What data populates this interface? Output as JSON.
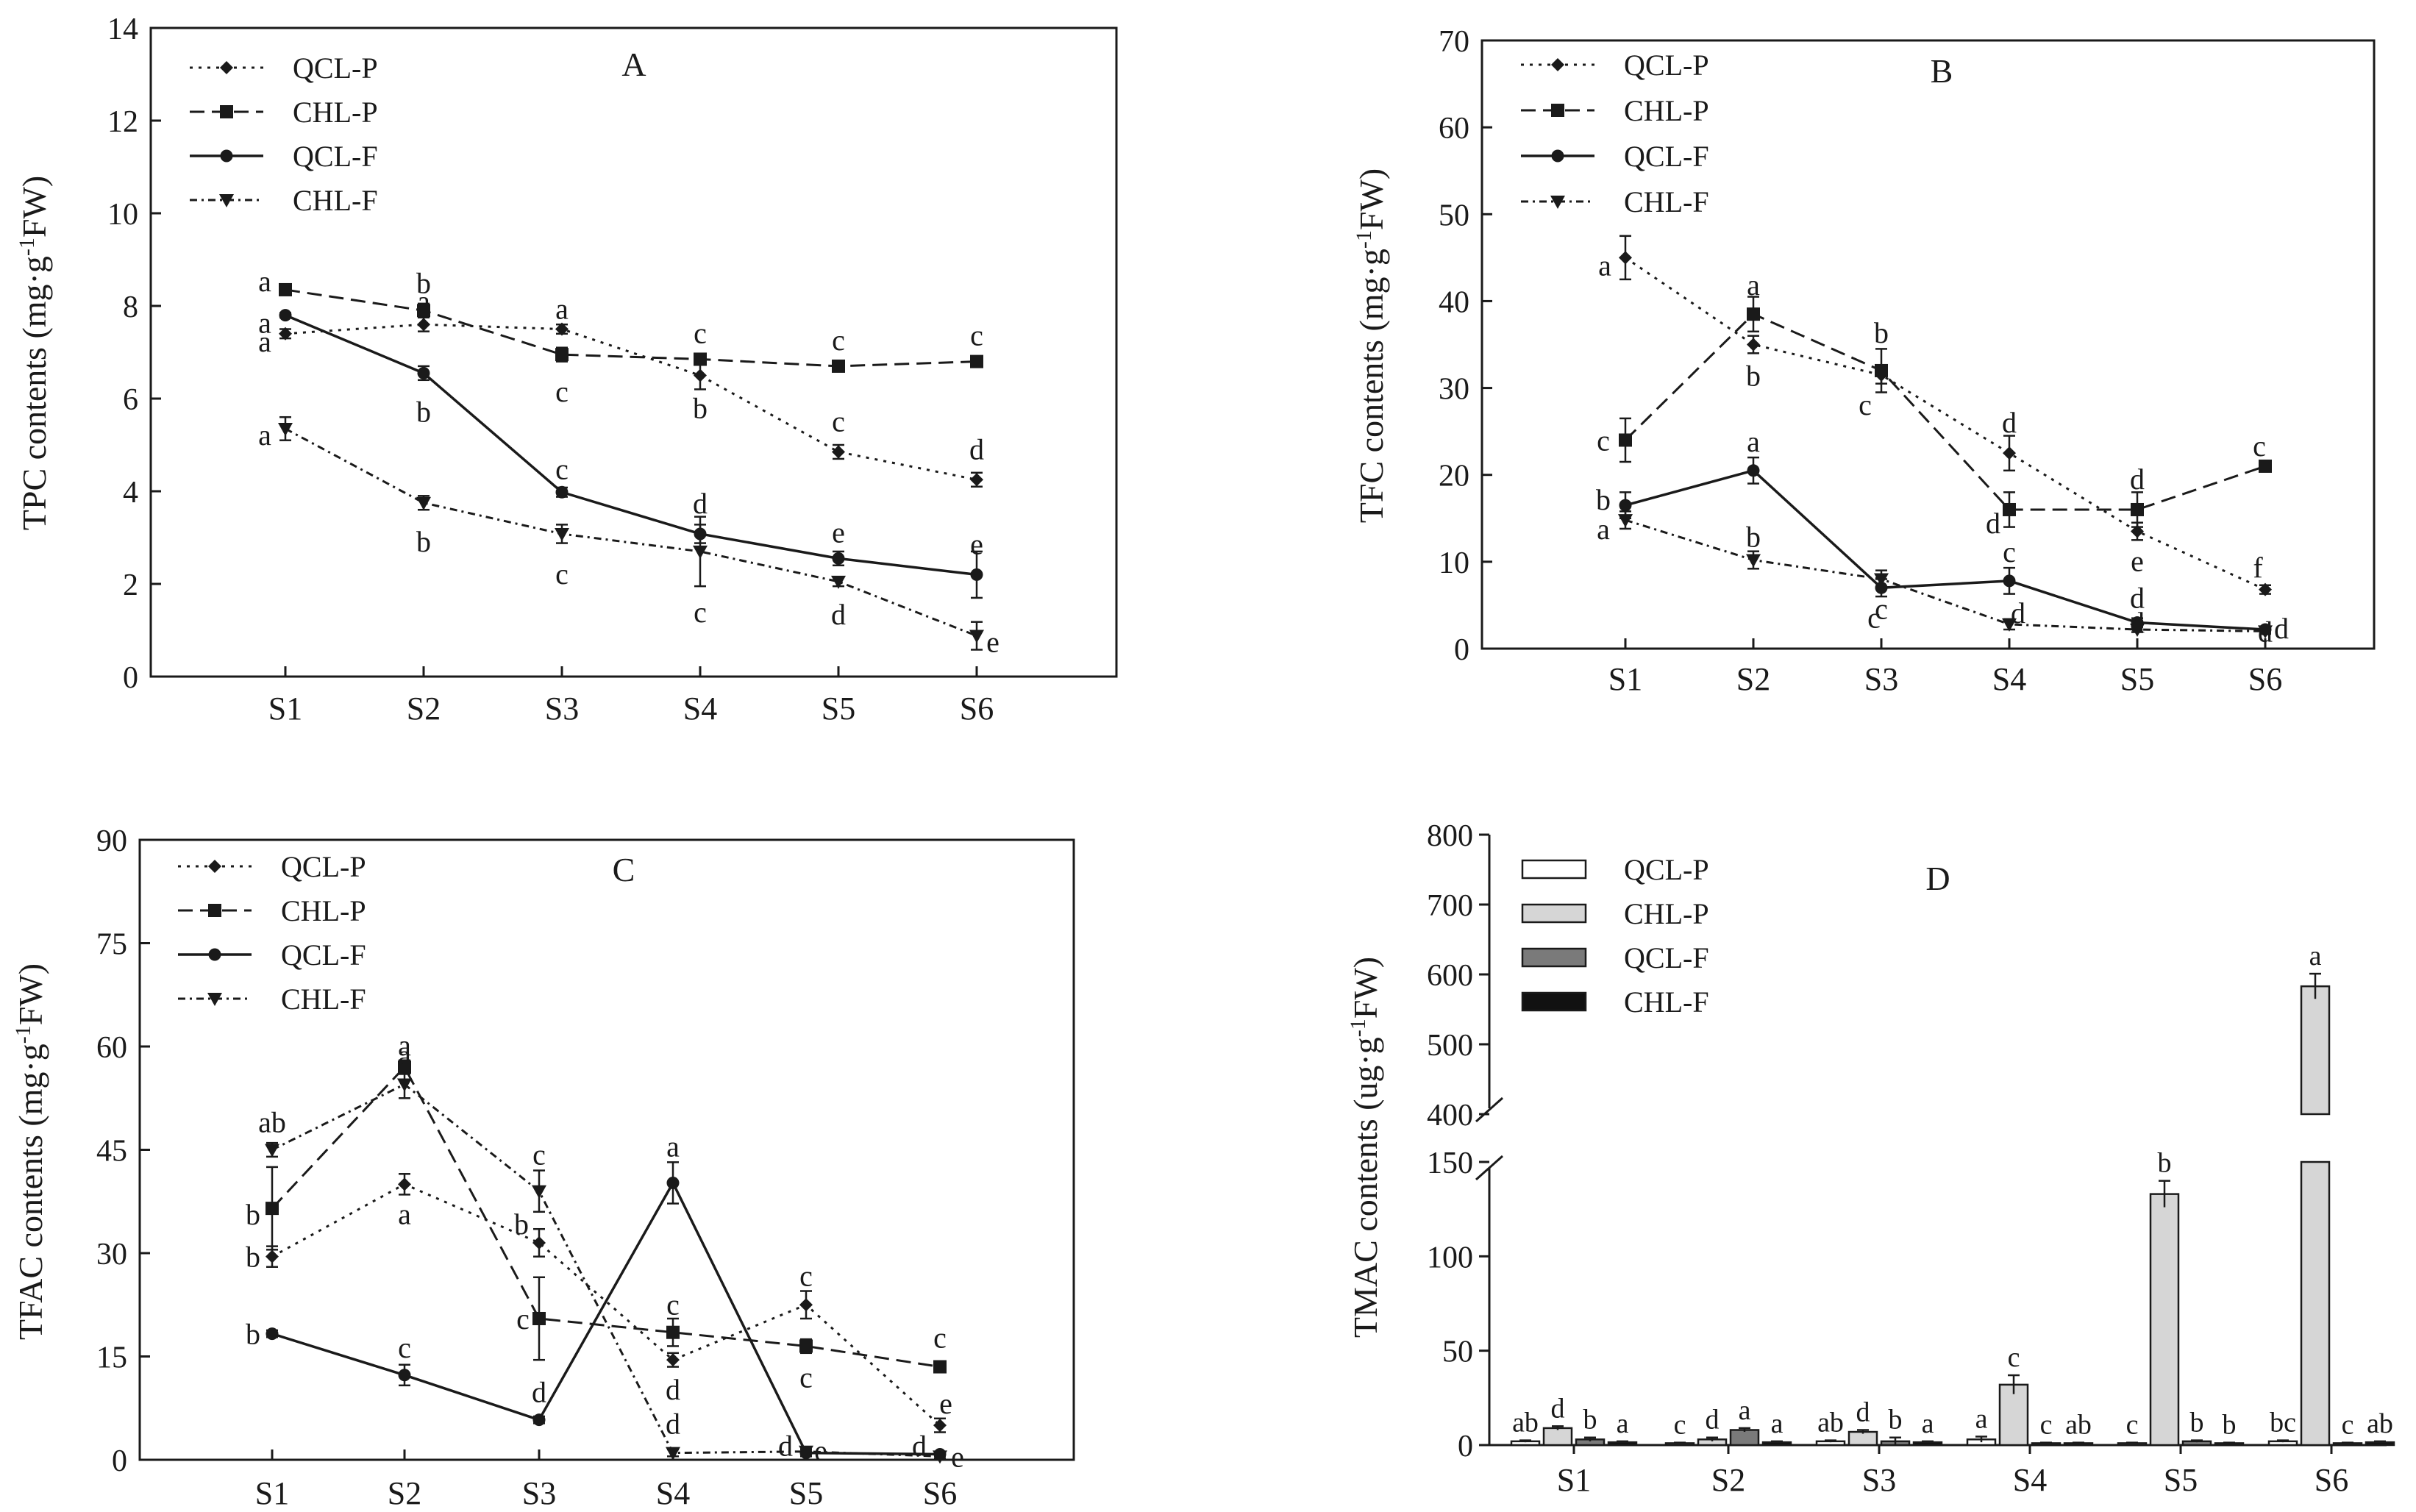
{
  "chart_data": [
    {
      "type": "line",
      "title": "A",
      "xlabel": "",
      "ylabel": "TPC contents (mg·g⁻¹FW)",
      "categories": [
        "S1",
        "S2",
        "S3",
        "S4",
        "S5",
        "S6"
      ],
      "ylim": [
        0,
        14
      ],
      "yticks": [
        0,
        2,
        4,
        6,
        8,
        10,
        12,
        14
      ],
      "legend_position": "top-left",
      "series": [
        {
          "name": "QCL-P",
          "values": [
            7.4,
            7.6,
            7.5,
            6.5,
            4.85,
            4.25
          ],
          "errors": [
            0.1,
            0.15,
            0.1,
            0.3,
            0.15,
            0.15
          ],
          "letters": [
            "a",
            "a",
            "a",
            "b",
            "c",
            "d"
          ]
        },
        {
          "name": "CHL-P",
          "values": [
            8.35,
            7.9,
            6.95,
            6.85,
            6.7,
            6.8
          ],
          "errors": [
            0.1,
            0.15,
            0.15,
            0.12,
            0.08,
            0.08
          ],
          "letters": [
            "a",
            "b",
            "c",
            "c",
            "c",
            "c"
          ]
        },
        {
          "name": "QCL-F",
          "values": [
            7.8,
            6.55,
            3.98,
            3.08,
            2.55,
            2.2
          ],
          "errors": [
            0.05,
            0.15,
            0.1,
            0.2,
            0.15,
            0.5
          ],
          "letters": [
            "a",
            "b",
            "c",
            "d",
            "e",
            "e"
          ]
        },
        {
          "name": "CHL-F",
          "values": [
            5.35,
            3.75,
            3.08,
            2.7,
            2.05,
            0.88
          ],
          "errors": [
            0.25,
            0.15,
            0.2,
            0.75,
            0.1,
            0.3
          ],
          "letters": [
            "a",
            "b",
            "c",
            "c",
            "d",
            "e"
          ]
        }
      ]
    },
    {
      "type": "line",
      "title": "B",
      "xlabel": "",
      "ylabel": "TFC contents (mg·g⁻¹FW)",
      "categories": [
        "S1",
        "S2",
        "S3",
        "S4",
        "S5",
        "S6"
      ],
      "ylim": [
        0,
        70
      ],
      "yticks": [
        0,
        10,
        20,
        30,
        40,
        50,
        60,
        70
      ],
      "legend_position": "top-left",
      "series": [
        {
          "name": "QCL-P",
          "values": [
            45,
            35,
            31.5,
            22.5,
            13.5,
            6.8
          ],
          "errors": [
            2.5,
            1,
            1,
            2,
            1,
            0.5
          ],
          "letters": [
            "a",
            "b",
            "c",
            "d",
            "e",
            "f"
          ]
        },
        {
          "name": "CHL-P",
          "values": [
            24,
            38.5,
            32,
            16,
            16,
            21
          ],
          "errors": [
            2.5,
            2,
            2.5,
            2,
            2,
            0.5
          ],
          "letters": [
            "c",
            "a",
            "b",
            "d",
            "d",
            "c"
          ]
        },
        {
          "name": "QCL-F",
          "values": [
            16.5,
            20.5,
            7,
            7.8,
            3,
            2.2
          ],
          "errors": [
            1.5,
            1.5,
            1,
            1.5,
            0.5,
            0.3
          ],
          "letters": [
            "b",
            "a",
            "c",
            "c",
            "d",
            "d"
          ]
        },
        {
          "name": "CHL-F",
          "values": [
            14.8,
            10.2,
            8,
            2.8,
            2.2,
            2
          ],
          "errors": [
            1,
            1,
            1,
            0.6,
            0.3,
            0.3
          ],
          "letters": [
            "a",
            "b",
            "c",
            "d",
            "d",
            "d"
          ]
        }
      ]
    },
    {
      "type": "line",
      "title": "C",
      "xlabel": "",
      "ylabel": "TFAC contents (mg·g⁻¹FW)",
      "categories": [
        "S1",
        "S2",
        "S3",
        "S4",
        "S5",
        "S6"
      ],
      "ylim": [
        0,
        90
      ],
      "yticks": [
        0,
        15,
        30,
        45,
        60,
        75,
        90
      ],
      "legend_position": "top-left",
      "series": [
        {
          "name": "QCL-P",
          "values": [
            29.5,
            40,
            31.5,
            14.5,
            22.5,
            5
          ],
          "errors": [
            1.5,
            1.5,
            2,
            1,
            2,
            1
          ],
          "letters": [
            "b",
            "a",
            "b",
            "d",
            "c",
            "e"
          ]
        },
        {
          "name": "CHL-P",
          "values": [
            36.5,
            57,
            20.5,
            18.5,
            16.5,
            13.5
          ],
          "errors": [
            6,
            1,
            6,
            2,
            1,
            0.8
          ],
          "letters": [
            "b",
            "a",
            "c",
            "c",
            "c",
            "c"
          ]
        },
        {
          "name": "QCL-F",
          "values": [
            18.3,
            12.3,
            5.8,
            40.2,
            1,
            0.8
          ],
          "errors": [
            0.5,
            1.5,
            0.5,
            3,
            0.5,
            0.3
          ],
          "letters": [
            "b",
            "c",
            "d",
            "a",
            "d",
            "d"
          ]
        },
        {
          "name": "CHL-F",
          "values": [
            45,
            54.5,
            39,
            1,
            1.2,
            0.5
          ],
          "errors": [
            1,
            2,
            3,
            0.5,
            0.3,
            0.3
          ],
          "letters": [
            "ab",
            "a",
            "c",
            "d",
            "e",
            "e"
          ]
        }
      ]
    },
    {
      "type": "bar",
      "title": "D",
      "xlabel": "",
      "ylabel": "TMAC contents (ug·g⁻¹FW)",
      "categories": [
        "S1",
        "S2",
        "S3",
        "S4",
        "S5",
        "S6"
      ],
      "axis_break": [
        150,
        400
      ],
      "lower_range": [
        0,
        150
      ],
      "upper_range": [
        400,
        800
      ],
      "yticks": [
        0,
        50,
        100,
        150,
        400,
        500,
        600,
        700,
        800
      ],
      "legend_position": "top-left",
      "series": [
        {
          "name": "QCL-P",
          "values": [
            2,
            1,
            2,
            3,
            1,
            2
          ],
          "errors": [
            0.5,
            0.3,
            0.5,
            1.5,
            0.3,
            0.5
          ],
          "letters": [
            "ab",
            "c",
            "ab",
            "a",
            "c",
            "bc"
          ]
        },
        {
          "name": "CHL-P",
          "values": [
            9,
            3,
            7,
            32,
            133,
            583
          ],
          "errors": [
            1,
            1,
            1,
            5,
            7,
            18
          ],
          "letters": [
            "d",
            "d",
            "d",
            "c",
            "b",
            "a"
          ]
        },
        {
          "name": "QCL-F",
          "values": [
            3,
            8,
            2,
            1,
            2,
            1
          ],
          "errors": [
            1,
            1,
            2,
            0.3,
            0.5,
            0.3
          ],
          "letters": [
            "b",
            "a",
            "b",
            "c",
            "b",
            "c"
          ]
        },
        {
          "name": "CHL-F",
          "values": [
            1.5,
            1.5,
            1.5,
            1,
            1,
            1.5
          ],
          "errors": [
            0.5,
            0.5,
            0.5,
            0.3,
            0.3,
            0.5
          ],
          "letters": [
            "a",
            "a",
            "a",
            "ab",
            "b",
            "ab"
          ]
        }
      ]
    }
  ]
}
